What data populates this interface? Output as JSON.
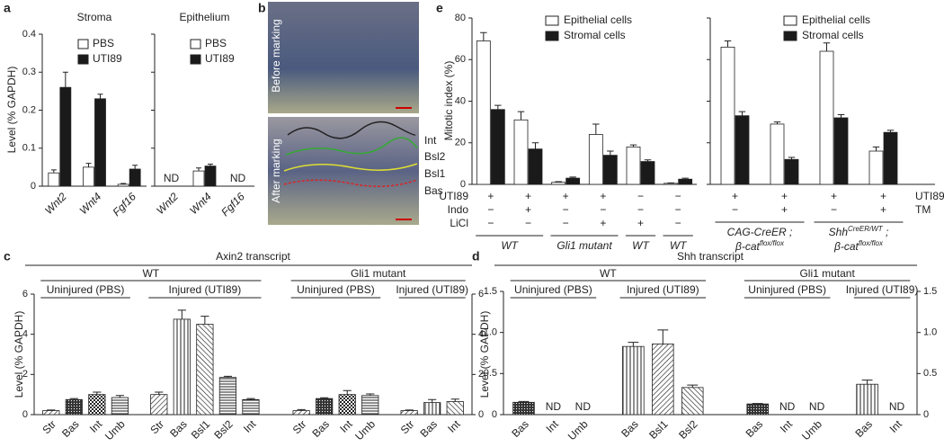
{
  "chart_data": [
    {
      "type": "bar",
      "panel": "a",
      "title": "Stroma",
      "y_label": "Level (% GAPDH)",
      "categories": [
        "Wnt2",
        "Wnt4",
        "Fgf16"
      ],
      "series": [
        {
          "name": "PBS",
          "color": "#ffffff",
          "values": [
            0.035,
            0.05,
            0.005
          ],
          "errors": [
            0.008,
            0.01,
            0.002
          ]
        },
        {
          "name": "UTI89",
          "color": "#1a1a1a",
          "values": [
            0.26,
            0.23,
            0.045
          ],
          "errors": [
            0.04,
            0.012,
            0.01
          ]
        }
      ],
      "ylim": [
        0,
        0.4
      ],
      "yticks": [
        0,
        0.1,
        0.2,
        0.3,
        0.4
      ]
    },
    {
      "type": "bar",
      "title": "Epithelium",
      "categories": [
        "Wnt2",
        "Wnt4",
        "Fgf16"
      ],
      "series": [
        {
          "name": "PBS",
          "color": "#ffffff",
          "values": [
            null,
            0.04,
            null
          ],
          "errors": [
            null,
            0.008,
            null
          ]
        },
        {
          "name": "UTI89",
          "color": "#1a1a1a",
          "values": [
            null,
            0.053,
            null
          ],
          "errors": [
            null,
            0.005,
            null
          ]
        }
      ],
      "value_labels": [
        "ND",
        null,
        "ND"
      ],
      "ylim": [
        0,
        0.4
      ],
      "yticks": [
        0,
        0.1,
        0.2,
        0.3,
        0.4
      ],
      "tick_labels": false
    },
    {
      "type": "bar",
      "panel": "e",
      "y_label": "Mitotic index (%)",
      "ylim": [
        0,
        80
      ],
      "yticks": [
        0,
        20,
        40,
        60,
        80
      ],
      "series": [
        {
          "name": "Epithelial cells",
          "color": "#ffffff"
        },
        {
          "name": "Stromal cells",
          "color": "#1a1a1a"
        }
      ],
      "condition_names": [
        "UTI89",
        "Indo",
        "LiCl"
      ],
      "condition_side": "left",
      "groups": [
        {
          "label": [
            [
              "WT"
            ]
          ],
          "columns": [
            {
              "conditions": [
                "+",
                "−",
                "−"
              ],
              "values": [
                69,
                36
              ],
              "errors": [
                4,
                2
              ]
            },
            {
              "conditions": [
                "+",
                "+",
                "−"
              ],
              "values": [
                31,
                17
              ],
              "errors": [
                4,
                3
              ]
            }
          ]
        },
        {
          "label": [
            [
              "Gli1 mutant"
            ]
          ],
          "columns": [
            {
              "conditions": [
                "+",
                "−",
                "−"
              ],
              "values": [
                1,
                3
              ],
              "errors": [
                0.3,
                0.5
              ]
            },
            {
              "conditions": [
                "+",
                "−",
                "+"
              ],
              "values": [
                24,
                14
              ],
              "errors": [
                5,
                2
              ]
            }
          ]
        },
        {
          "label": [
            [
              "WT"
            ]
          ],
          "columns": [
            {
              "conditions": [
                "−",
                "−",
                "+"
              ],
              "values": [
                18,
                11
              ],
              "errors": [
                1,
                0.8
              ]
            }
          ]
        },
        {
          "label": [
            [
              "WT"
            ]
          ],
          "columns": [
            {
              "conditions": [
                "−",
                "−",
                "−"
              ],
              "values": [
                0.5,
                2.5
              ],
              "errors": [
                0.2,
                0.5
              ]
            }
          ]
        }
      ]
    },
    {
      "type": "bar",
      "ylim": [
        0,
        80
      ],
      "yticks": [
        0,
        20,
        40,
        60,
        80
      ],
      "tick_labels": false,
      "series": [
        {
          "name": "Epithelial cells",
          "color": "#ffffff"
        },
        {
          "name": "Stromal cells",
          "color": "#1a1a1a"
        }
      ],
      "condition_names": [
        "UTI89",
        "TM"
      ],
      "condition_side": "right",
      "groups": [
        {
          "label": [
            [
              "CAG-CreER ;"
            ],
            [
              "β-cat",
              "flox/flox"
            ]
          ],
          "columns": [
            {
              "conditions": [
                "+",
                "−"
              ],
              "values": [
                66,
                33
              ],
              "errors": [
                3,
                2
              ]
            },
            {
              "conditions": [
                "+",
                "+"
              ],
              "values": [
                29,
                12
              ],
              "errors": [
                1,
                1
              ]
            }
          ]
        },
        {
          "label": [
            [
              "Shh",
              "CreER/WT",
              " ;"
            ],
            [
              "β-cat",
              "flox/flox"
            ]
          ],
          "columns": [
            {
              "conditions": [
                "+",
                "−"
              ],
              "values": [
                64,
                32
              ],
              "errors": [
                4,
                1.5
              ]
            },
            {
              "conditions": [
                "+",
                "+"
              ],
              "values": [
                16,
                25
              ],
              "errors": [
                2,
                1
              ]
            }
          ]
        }
      ]
    },
    {
      "type": "grouped-bar",
      "panel": "c",
      "title": "Axin2 transcript",
      "y_label": "Level (% GAPDH)",
      "ylim": [
        0,
        6
      ],
      "yticks": [
        0,
        2,
        4,
        6
      ],
      "groups": [
        {
          "label": "WT",
          "subgroups": [
            {
              "label": "Uninjured (PBS)",
              "categories": [
                "Str",
                "Bas",
                "Int",
                "Umb"
              ],
              "values": [
                0.2,
                0.75,
                1.0,
                0.85
              ],
              "errors": [
                0.03,
                0.05,
                0.12,
                0.1
              ]
            },
            {
              "label": "Injured (UTI89)",
              "categories": [
                "Str",
                "Bas",
                "Bsl1",
                "Bsl2",
                "Int"
              ],
              "values": [
                1.0,
                4.75,
                4.5,
                1.85,
                0.75
              ],
              "errors": [
                0.12,
                0.45,
                0.4,
                0.06,
                0.05
              ]
            }
          ]
        },
        {
          "label": "Gli1 mutant",
          "subgroups": [
            {
              "label": "Uninjured (PBS)",
              "categories": [
                "Str",
                "Bas",
                "Int",
                "Umb"
              ],
              "values": [
                0.2,
                0.8,
                1.0,
                0.95
              ],
              "errors": [
                0.05,
                0.04,
                0.2,
                0.08
              ]
            },
            {
              "label": "Injured (UTI89)",
              "categories": [
                "Str",
                "Bas",
                "Int"
              ],
              "values": [
                0.2,
                0.6,
                0.65
              ],
              "errors": [
                0.03,
                0.15,
                0.12
              ]
            }
          ]
        }
      ]
    },
    {
      "type": "grouped-bar",
      "panel": "d",
      "title": "Shh transcript",
      "y_label": "Level (% GAPDH)",
      "ylim": [
        0,
        1.5
      ],
      "yticks": [
        0,
        0.5,
        {
          "value": 1,
          "label": "1.0"
        },
        1.5
      ],
      "groups": [
        {
          "label": "WT",
          "subgroups": [
            {
              "label": "Uninjured (PBS)",
              "categories": [
                "Bas",
                "Int",
                "Umb"
              ],
              "values": [
                0.15,
                null,
                null
              ],
              "errors": [
                0.01,
                null,
                null
              ],
              "value_labels": [
                null,
                "ND",
                "ND"
              ]
            },
            {
              "label": "Injured (UTI89)",
              "categories": [
                "Bas",
                "Bsl1",
                "Bsl2"
              ],
              "values": [
                0.83,
                0.86,
                0.33
              ],
              "errors": [
                0.05,
                0.17,
                0.03
              ]
            }
          ]
        },
        {
          "label": "Gli1 mutant",
          "subgroups": [
            {
              "label": "Uninjured (PBS)",
              "categories": [
                "Bas",
                "Int",
                "Umb"
              ],
              "values": [
                0.13,
                null,
                null
              ],
              "errors": [
                0.005,
                null,
                null
              ],
              "value_labels": [
                null,
                "ND",
                "ND"
              ]
            },
            {
              "label": "Injured (UTI89)",
              "categories": [
                "Bas",
                "Int"
              ],
              "values": [
                0.37,
                null
              ],
              "errors": [
                0.05,
                null
              ],
              "value_labels": [
                null,
                "ND"
              ]
            }
          ]
        }
      ]
    }
  ],
  "image_panel": {
    "panel": "b",
    "labels": [
      "Before marking",
      "After marking"
    ],
    "layers": [
      "Int",
      "Bsl2",
      "Bsl1",
      "Bas"
    ]
  }
}
